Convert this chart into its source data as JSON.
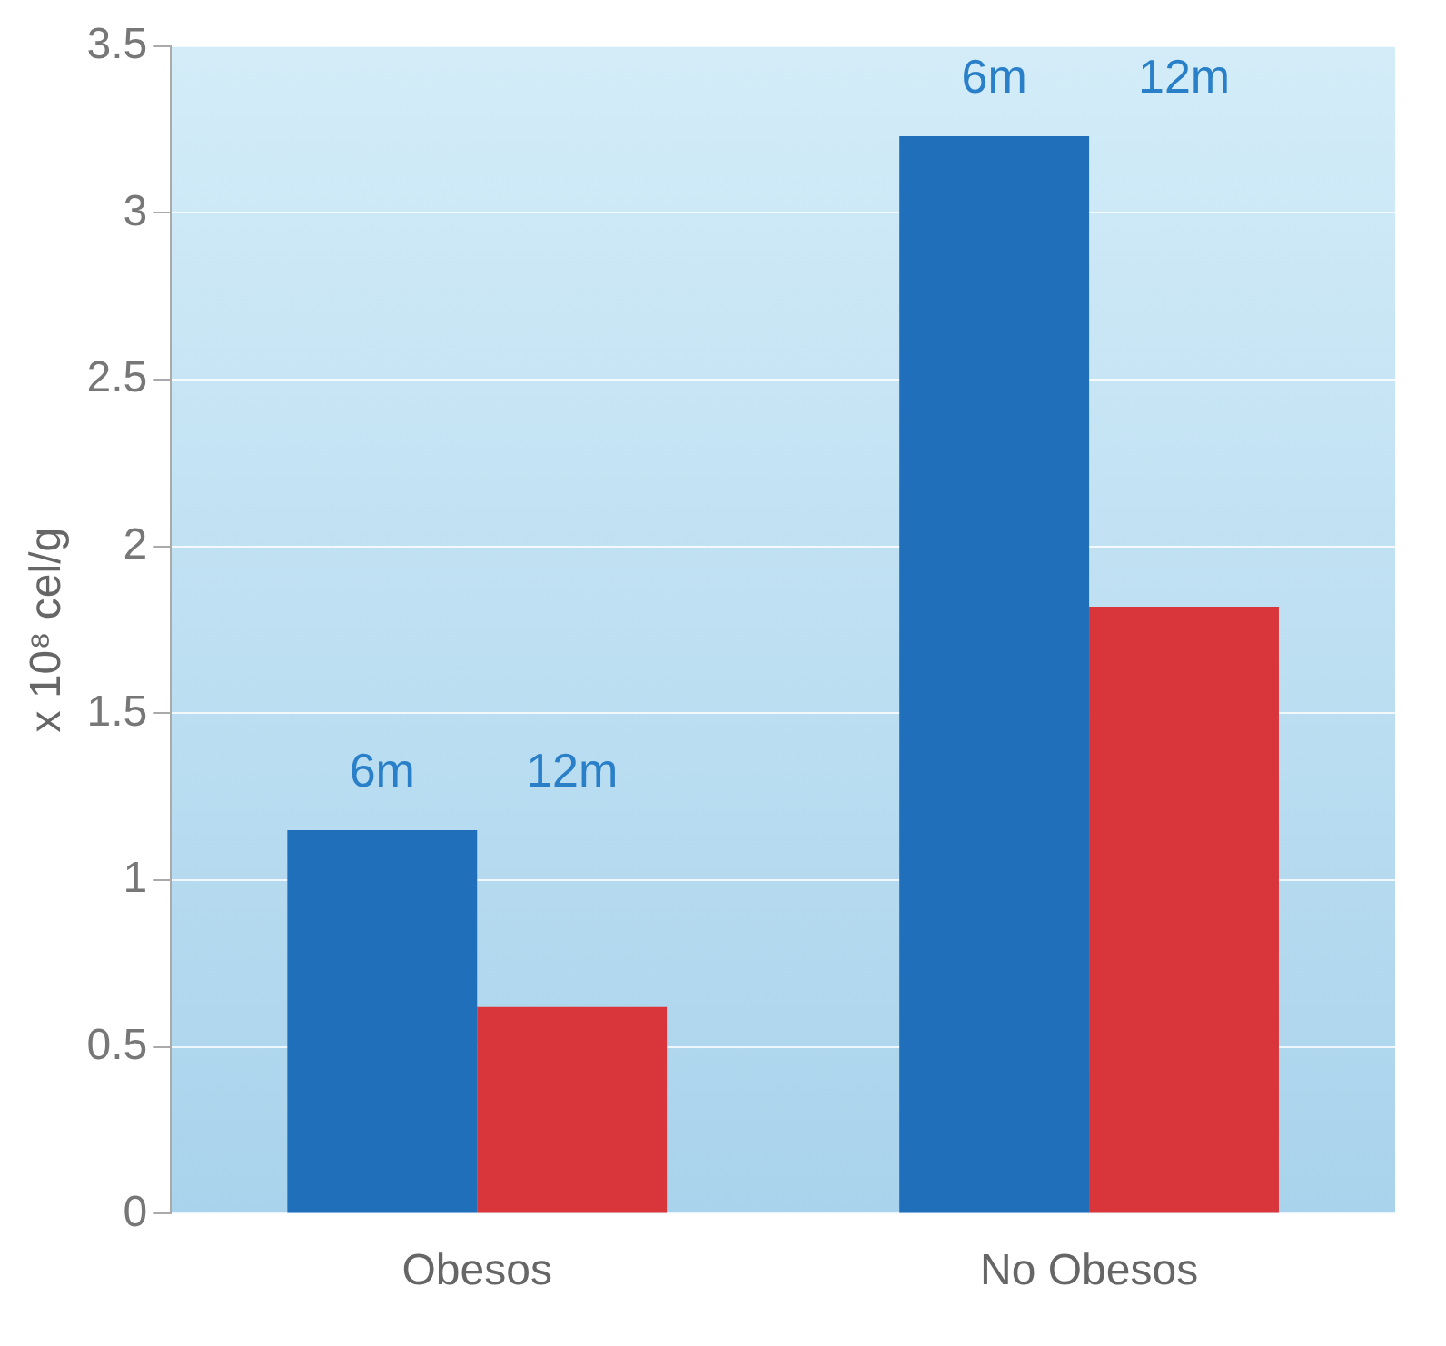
{
  "chart_data": {
    "type": "bar",
    "ylabel": "x 10⁸ cel/g",
    "categories": [
      "Obesos",
      "No Obesos"
    ],
    "series": [
      {
        "name": "6m",
        "color": "#1f6fba",
        "values": [
          1.15,
          3.23
        ]
      },
      {
        "name": "12m",
        "color": "#d9363b",
        "values": [
          0.62,
          1.82
        ]
      }
    ],
    "ylim": [
      0,
      3.5
    ],
    "yticks": [
      0,
      0.5,
      1,
      1.5,
      2,
      2.5,
      3,
      3.5
    ],
    "grid": "y",
    "legend": false
  }
}
